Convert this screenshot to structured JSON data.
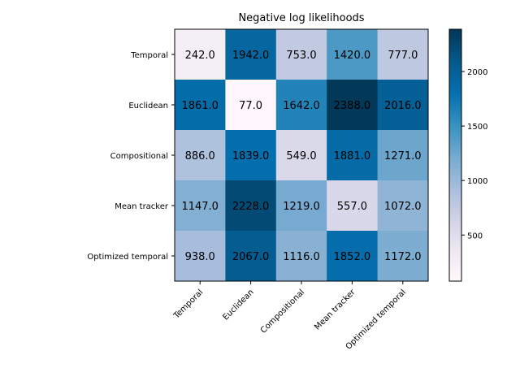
{
  "chart_data": {
    "type": "heatmap",
    "title": "Negative log likelihoods",
    "x_categories": [
      "Temporal",
      "Euclidean",
      "Compositional",
      "Mean tracker",
      "Optimized temporal"
    ],
    "y_categories": [
      "Temporal",
      "Euclidean",
      "Compositional",
      "Mean tracker",
      "Optimized temporal"
    ],
    "values": [
      [
        242.0,
        1942.0,
        753.0,
        1420.0,
        777.0
      ],
      [
        1861.0,
        77.0,
        1642.0,
        2388.0,
        2016.0
      ],
      [
        886.0,
        1839.0,
        549.0,
        1881.0,
        1271.0
      ],
      [
        1147.0,
        2228.0,
        1219.0,
        557.0,
        1072.0
      ],
      [
        938.0,
        2067.0,
        1116.0,
        1852.0,
        1172.0
      ]
    ],
    "cell_labels": [
      [
        "242.0",
        "1942.0",
        "753.0",
        "1420.0",
        "777.0"
      ],
      [
        "1861.0",
        "77.0",
        "1642.0",
        "2388.0",
        "2016.0"
      ],
      [
        "886.0",
        "1839.0",
        "549.0",
        "1881.0",
        "1271.0"
      ],
      [
        "1147.0",
        "2228.0",
        "1219.0",
        "557.0",
        "1072.0"
      ],
      [
        "938.0",
        "2067.0",
        "1116.0",
        "1852.0",
        "1172.0"
      ]
    ],
    "colormap": "PuBu",
    "color_range": [
      77,
      2388
    ],
    "colorbar_ticks": [
      500,
      1000,
      1500,
      2000
    ],
    "colorbar_tick_labels": [
      "500",
      "1000",
      "1500",
      "2000"
    ],
    "x_tick_rotation_deg": 45,
    "legend": "none",
    "grid": false
  }
}
